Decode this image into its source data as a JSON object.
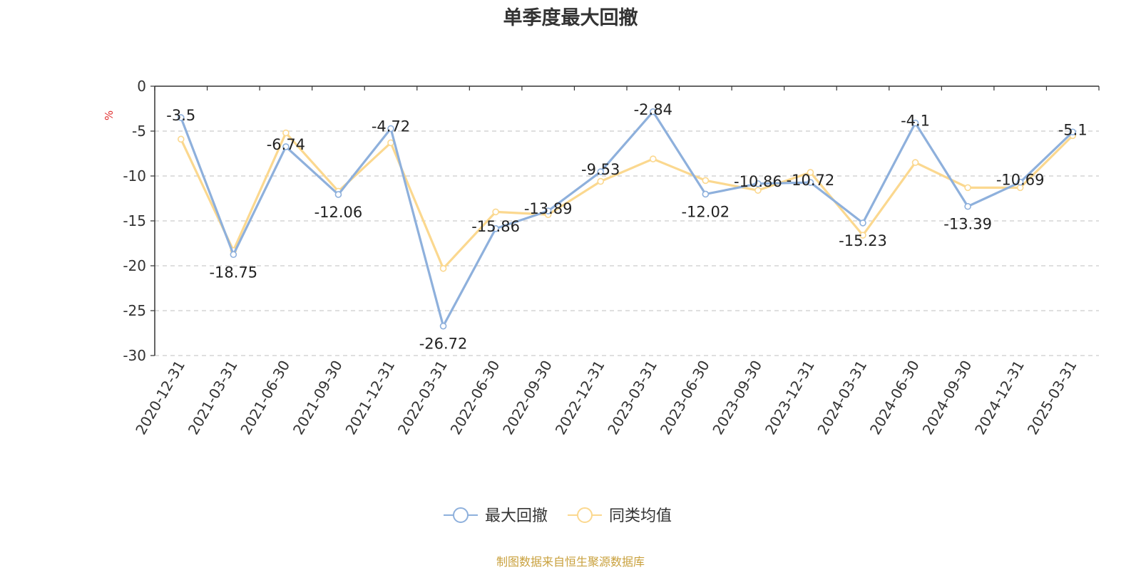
{
  "chart_data": {
    "type": "line",
    "title": "单季度最大回撤",
    "ylabel": "%",
    "ylim": [
      -30,
      0
    ],
    "yticks": [
      0,
      -5,
      -10,
      -15,
      -20,
      -25,
      -30
    ],
    "grid": true,
    "legend_position": "bottom-center",
    "categories": [
      "2020-12-31",
      "2021-03-31",
      "2021-06-30",
      "2021-09-30",
      "2021-12-31",
      "2022-03-31",
      "2022-06-30",
      "2022-09-30",
      "2022-12-31",
      "2023-03-31",
      "2023-06-30",
      "2023-09-30",
      "2023-12-31",
      "2024-03-31",
      "2024-06-30",
      "2024-09-30",
      "2024-12-31",
      "2025-03-31"
    ],
    "series": [
      {
        "name": "最大回撤",
        "color": "#8eb0dc",
        "labeled": true,
        "values": [
          -3.5,
          -18.75,
          -6.74,
          -12.06,
          -4.72,
          -26.72,
          -15.86,
          -13.89,
          -9.53,
          -2.84,
          -12.02,
          -10.86,
          -10.72,
          -15.23,
          -4.1,
          -13.39,
          -10.69,
          -5.1
        ]
      },
      {
        "name": "同类均值",
        "color": "#fbd88f",
        "labeled": false,
        "values": [
          -5.9,
          -18.3,
          -5.2,
          -11.7,
          -6.3,
          -20.3,
          -14.0,
          -14.3,
          -10.6,
          -8.1,
          -10.5,
          -11.6,
          -9.6,
          -16.6,
          -8.5,
          -11.3,
          -11.3,
          -5.5
        ]
      }
    ]
  },
  "footer": {
    "text": "制图数据来自恒生聚源数据库",
    "color": "#c9a13e"
  },
  "ylabel_color": "#e03030"
}
